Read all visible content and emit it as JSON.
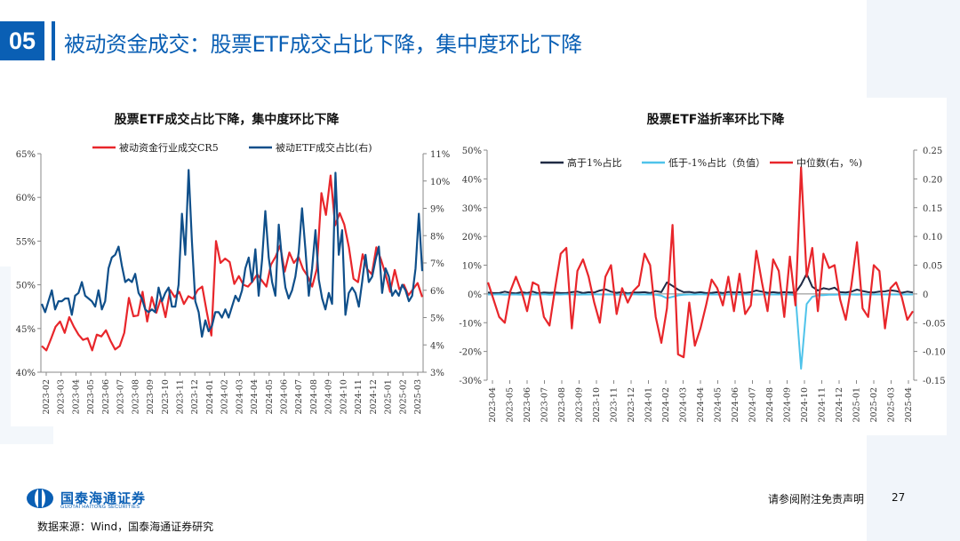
{
  "header": {
    "number": "05",
    "title": "被动资金成交：股票ETF成交占比下降，集中度环比下降"
  },
  "footer": {
    "source": "数据来源：Wind，国泰海通证券研究",
    "disclaimer": "请参阅附注免责声明",
    "page": "27",
    "logo_cn": "国泰海通证券",
    "logo_en": "GUOTAI HAITONG SECURITIES"
  },
  "chart_data": [
    {
      "type": "line",
      "title": "股票ETF成交占比下降，集中度环比下降",
      "x_ticks": [
        "2023-02",
        "2023-03",
        "2023-04",
        "2023-05",
        "2023-06",
        "2023-07",
        "2023-08",
        "2023-09",
        "2023-10",
        "2023-11",
        "2023-12",
        "2024-01",
        "2024-02",
        "2024-03",
        "2024-04",
        "2024-05",
        "2024-06",
        "2024-07",
        "2024-08",
        "2024-09",
        "2024-10",
        "2024-11",
        "2024-12",
        "2025-01",
        "2025-02",
        "2025-03"
      ],
      "y_left": {
        "range": [
          40,
          65
        ],
        "ticks": [
          "40%",
          "45%",
          "50%",
          "55%",
          "60%",
          "65%"
        ]
      },
      "y_right": {
        "range": [
          3,
          11
        ],
        "ticks": [
          "3%",
          "4%",
          "5%",
          "6%",
          "7%",
          "8%",
          "9%",
          "10%",
          "11%"
        ]
      },
      "legend": [
        "被动资金行业成交CR5",
        "被动ETF成交占比(右)"
      ],
      "colors": {
        "cr5": "#e8262b",
        "etf": "#0f4f8a"
      },
      "series": [
        {
          "name": "被动资金行业成交CR5",
          "axis": "left",
          "values": [
            43,
            42.5,
            43.8,
            45.2,
            45.8,
            44.5,
            46.3,
            45.2,
            44.3,
            43.7,
            43.9,
            42.5,
            44.3,
            44.1,
            44.8,
            43.6,
            42.6,
            43,
            44.5,
            48.5,
            46.4,
            46.5,
            49.2,
            45.8,
            48.6,
            46.8,
            48.5,
            46.3,
            49.4,
            48.6,
            49.2,
            47.8,
            48.7,
            48.4,
            49.4,
            49.8,
            46.9,
            44.2,
            55,
            52.5,
            53,
            52.6,
            50.1,
            51,
            50,
            49.8,
            50.4,
            51.2,
            50.5,
            49.8,
            52.3,
            53.2,
            54.5,
            51.5,
            53.7,
            52.5,
            53.2,
            51.8,
            51,
            49.8,
            51.8,
            60.5,
            58,
            62.5,
            56.8,
            58.2,
            56.9,
            54.3,
            50.7,
            50.3,
            53.5,
            51.8,
            51.2,
            54.3,
            52.9,
            51.2,
            49.2,
            51.7,
            49.5,
            50,
            48.8,
            49.5,
            50.2,
            48.6
          ]
        },
        {
          "name": "被动ETF成交占比(右)",
          "axis": "right",
          "values": [
            5.5,
            5.2,
            5.6,
            6.0,
            5.3,
            5.6,
            5.6,
            5.7,
            5.7,
            5.1,
            5.8,
            5.9,
            6.3,
            5.8,
            5.7,
            5.6,
            5.4,
            6.0,
            5.3,
            5.6,
            6.8,
            7.2,
            7.3,
            7.6,
            6.9,
            6.3,
            6.4,
            6.3,
            6.6,
            5.9,
            5.7,
            5.3,
            5.2,
            5.3,
            5.2,
            6.1,
            5.6,
            5.9,
            6.1,
            5.4,
            5.4,
            6.2,
            8.8,
            7.3,
            10.4,
            7.8,
            5.6,
            5.2,
            4.3,
            4.9,
            4.5,
            4.7,
            5.2,
            5.2,
            5.0,
            5.3,
            5.0,
            5.4,
            5.8,
            5.6,
            6.0,
            6.8,
            7.2,
            6.3,
            7.5,
            5.8,
            7.1,
            8.9,
            7.2,
            6.3,
            5.8,
            8.4,
            7.1,
            6.1,
            5.7,
            6.0,
            6.5,
            7.4,
            9.0,
            7.5,
            5.8,
            6.8,
            8.2,
            6.4,
            5.7,
            5.3,
            5.9,
            5.5,
            10.3,
            7.3,
            8.2,
            5.1,
            5.9,
            6.1,
            5.9,
            5.4,
            6.3,
            7.3,
            6.3,
            6.5,
            7.1,
            7.6,
            5.9,
            6.8,
            6.5,
            5.8,
            6.0,
            5.8,
            6.2,
            6.0,
            5.6,
            5.8,
            6.8,
            8.8,
            6.7
          ]
        }
      ]
    },
    {
      "type": "line",
      "title": "股票ETF溢折率环比下降",
      "x_ticks": [
        "2023-04",
        "2023-05",
        "2023-06",
        "2023-07",
        "2023-08",
        "2023-09",
        "2023-10",
        "2023-11",
        "2023-12",
        "2024-01",
        "2024-02",
        "2024-03",
        "2024-04",
        "2024-05",
        "2024-06",
        "2024-07",
        "2024-08",
        "2024-09",
        "2024-10",
        "2024-11",
        "2024-12",
        "2025-01",
        "2025-02",
        "2025-03",
        "2025-04"
      ],
      "y_left": {
        "range": [
          -30,
          50
        ],
        "ticks": [
          "-30%",
          "-20%",
          "-10%",
          "0%",
          "10%",
          "20%",
          "30%",
          "40%",
          "50%"
        ]
      },
      "y_right": {
        "range": [
          -0.15,
          0.25
        ],
        "ticks": [
          "-0.15",
          "-0.10",
          "-0.05",
          "0",
          "0.05",
          "0.10",
          "0.15",
          "0.20",
          "0.25"
        ]
      },
      "legend": [
        "高于1%占比",
        "低于-1%占比（负值）",
        "中位数(右，%)"
      ],
      "colors": {
        "above": "#1f2a44",
        "below": "#4fc3ea",
        "median": "#e8262b"
      },
      "series": [
        {
          "name": "高于1%占比",
          "axis": "left",
          "values": [
            0.5,
            0.3,
            0.3,
            0.8,
            0.4,
            0.2,
            0.6,
            0.3,
            0.8,
            0.2,
            0.5,
            0.4,
            0.5,
            0.3,
            0.3,
            0.6,
            0.8,
            0.3,
            0.6,
            0.5,
            1.2,
            1.6,
            0.8,
            0.4,
            0.7,
            0.2,
            0.5,
            0.5,
            0.6,
            0.3,
            1.0,
            0.6,
            4.0,
            2.8,
            1.5,
            0.6,
            0.7,
            0.4,
            0.6,
            0.3,
            0.4,
            0.6,
            0.3,
            0.7,
            0.5,
            0.6,
            0.4,
            0.6,
            1.2,
            0.8,
            0.4,
            0.6,
            0.4,
            0.6,
            0.5,
            0.5,
            3.2,
            7.0,
            2.5,
            1.2,
            2.0,
            1.6,
            2.2,
            0.6,
            0.5,
            0.8,
            1.5,
            1.0,
            0.6,
            0.5,
            0.8,
            0.9,
            1.3,
            1.0,
            0.4,
            0.8,
            0.5
          ]
        },
        {
          "name": "低于-1%占比（负值）",
          "axis": "left",
          "values": [
            -0.2,
            -0.2,
            -0.1,
            -0.3,
            -0.2,
            -0.2,
            -0.3,
            -0.1,
            -0.2,
            -0.2,
            -0.1,
            -0.3,
            -0.2,
            -0.2,
            -0.1,
            -0.2,
            -0.3,
            -0.2,
            -0.2,
            -0.1,
            -0.2,
            -0.2,
            -0.2,
            -0.3,
            -0.2,
            -0.2,
            -0.1,
            -0.2,
            -0.2,
            -0.2,
            -0.3,
            -0.6,
            -1.5,
            -1.0,
            -0.5,
            -0.3,
            -0.2,
            -0.2,
            -0.1,
            -0.2,
            -0.2,
            -0.2,
            -0.3,
            -0.2,
            -0.1,
            -0.2,
            -0.2,
            -0.2,
            -0.3,
            -0.2,
            -0.2,
            -0.2,
            -0.2,
            -0.2,
            -0.2,
            -0.4,
            -26,
            -3.5,
            -1.0,
            -0.5,
            -0.4,
            -0.3,
            -0.3,
            -0.2,
            -0.2,
            -0.2,
            -0.3,
            -0.2,
            -0.2,
            -0.2,
            -0.2,
            -0.2,
            -0.2,
            -0.2,
            -0.2,
            -0.2,
            -0.2
          ]
        },
        {
          "name": "中位数(右，%)",
          "axis": "right",
          "values": [
            0.02,
            -0.01,
            -0.04,
            -0.05,
            0.005,
            0.03,
            0.005,
            -0.03,
            0.02,
            0.015,
            -0.04,
            -0.055,
            0.01,
            0.07,
            0.08,
            -0.06,
            0.04,
            0.06,
            0.03,
            -0.015,
            -0.05,
            0.03,
            0.05,
            -0.035,
            0.01,
            -0.015,
            0.005,
            0.015,
            0.07,
            0.05,
            -0.04,
            -0.085,
            -0.025,
            0.12,
            -0.105,
            -0.11,
            -0.015,
            -0.09,
            -0.06,
            -0.02,
            0.025,
            0.01,
            -0.02,
            0.03,
            -0.03,
            0.035,
            -0.035,
            -0.02,
            0.075,
            0.02,
            -0.03,
            0.06,
            0.04,
            -0.04,
            0.065,
            -0.02,
            0.22,
            0.03,
            0.08,
            -0.03,
            0.07,
            0.045,
            0.05,
            -0.01,
            -0.045,
            0.015,
            0.09,
            -0.025,
            -0.04,
            0.05,
            0.04,
            -0.06,
            0.01,
            0.02,
            -0.005,
            -0.045,
            -0.03
          ]
        }
      ]
    }
  ]
}
